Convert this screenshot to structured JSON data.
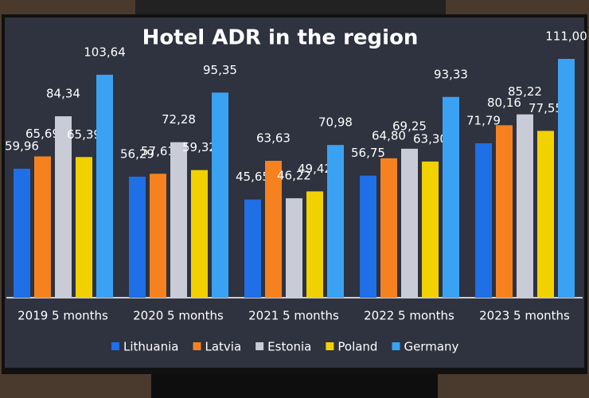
{
  "chart_data": {
    "type": "bar",
    "title": "Hotel ADR in the region",
    "categories": [
      "2019 5 months",
      "2020 5 months",
      "2021 5 months",
      "2022 5 months",
      "2023 5 months"
    ],
    "series": [
      {
        "name": "Lithuania",
        "color": "#1f6fe6",
        "values": [
          59.96,
          56.29,
          45.65,
          56.75,
          71.79
        ],
        "value_labels": [
          "59,96",
          "56,29",
          "45,65",
          "56,75",
          "71,79"
        ]
      },
      {
        "name": "Latvia",
        "color": "#f5821f",
        "values": [
          65.69,
          57.61,
          63.63,
          64.8,
          80.16
        ],
        "value_labels": [
          "65,69",
          "57,61",
          "63,63",
          "64,80",
          "80,16"
        ]
      },
      {
        "name": "Estonia",
        "color": "#c9ccd6",
        "values": [
          84.34,
          72.28,
          46.22,
          69.25,
          85.22
        ],
        "value_labels": [
          "84,34",
          "72,28",
          "46,22",
          "69,25",
          "85,22"
        ]
      },
      {
        "name": "Poland",
        "color": "#f2d100",
        "values": [
          65.39,
          59.32,
          49.42,
          63.3,
          77.55
        ],
        "value_labels": [
          "65,39",
          "59,32",
          "49,42",
          "63,30",
          "77,55"
        ]
      },
      {
        "name": "Germany",
        "color": "#3aa2f2",
        "values": [
          103.64,
          95.35,
          70.98,
          93.33,
          111.0
        ],
        "value_labels": [
          "103,64",
          "95,35",
          "70,98",
          "93,33",
          "111,00"
        ]
      }
    ]
  }
}
